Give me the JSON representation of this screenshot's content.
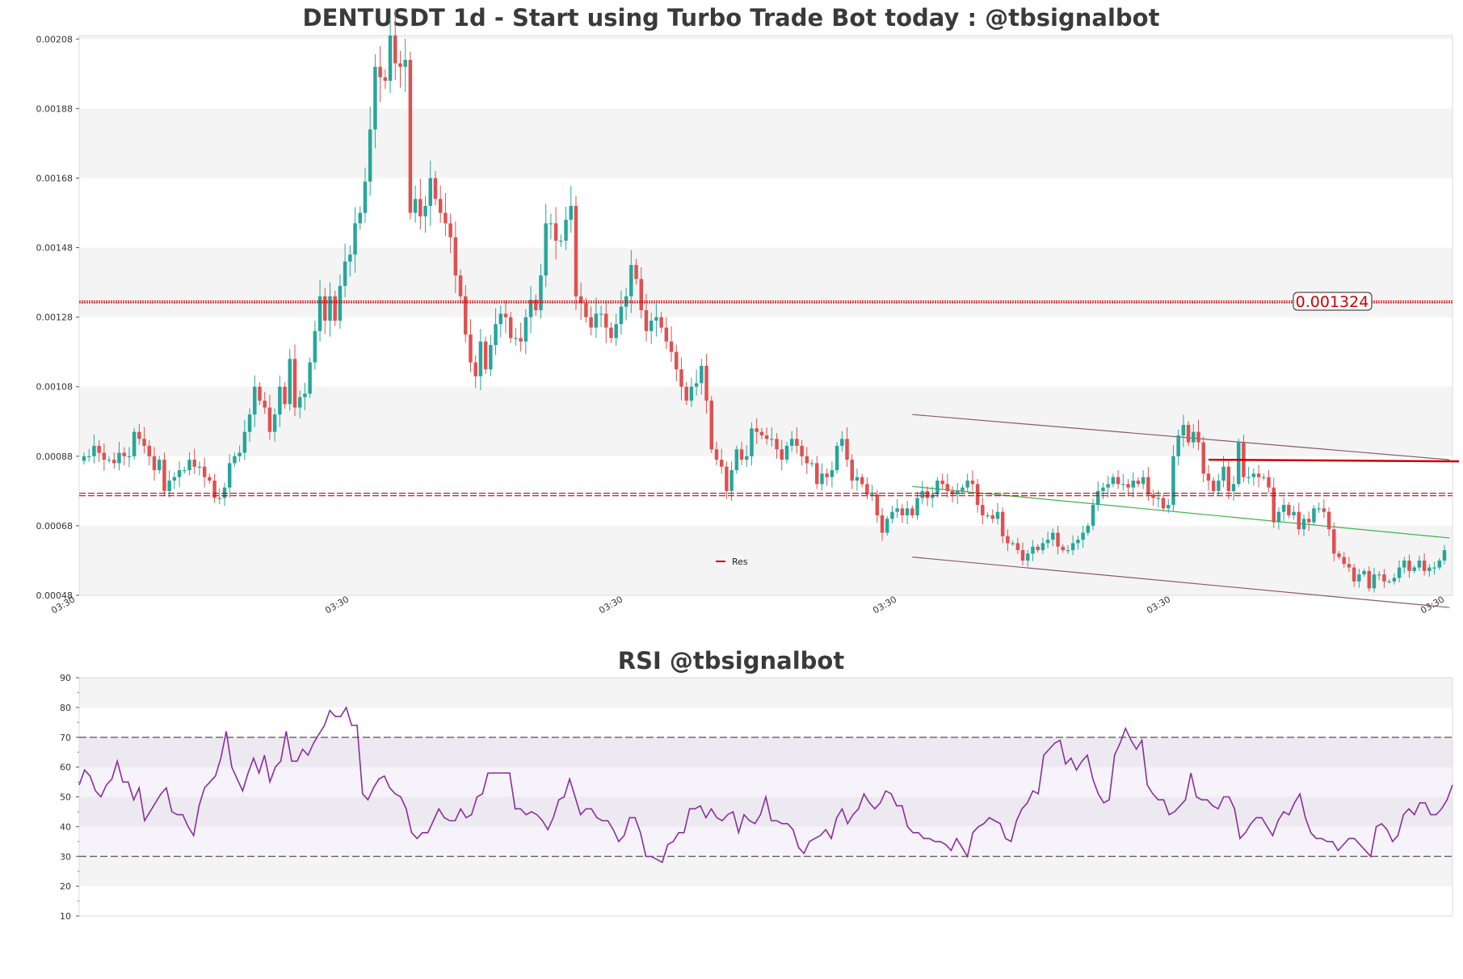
{
  "main_title": "DENTUSDT 1d - Start using Turbo Trade Bot today : @tbsignalbot",
  "rsi_title": "RSI @tbsignalbot",
  "legend_label": "Res",
  "price_tag": "0.001324",
  "colors": {
    "up": "#26a69a",
    "down": "#e05050",
    "res_line": "#cc0000",
    "rsi_line": "#8a2da0",
    "channel": "#8b5a6b",
    "mid_channel": "#3cb44b",
    "band": "#f4f4f4",
    "text": "#333333"
  },
  "chart_data": [
    {
      "type": "candlestick",
      "title": "DENTUSDT 1d - Start using Turbo Trade Bot today : @tbsignalbot",
      "ylim": [
        0.00048,
        0.00209
      ],
      "yticks": [
        "0.00048",
        "0.00068",
        "0.00088",
        "0.00108",
        "0.00128",
        "0.00148",
        "0.00168",
        "0.00188",
        "0.00208"
      ],
      "xtick_labels": [
        "03:30",
        "03:30",
        "03:30",
        "03:30",
        "03:30",
        "03:30"
      ],
      "legend": [
        "Res"
      ],
      "resistance_levels": [
        0.001324,
        0.00077
      ],
      "price_label": "0.001324",
      "short_resistance": {
        "value": 0.00087,
        "from_index": 224
      },
      "channel": {
        "start_index": 165,
        "end_index": 272,
        "upper": [
          0.001,
          0.00087
        ],
        "middle": [
          0.000793,
          0.000645
        ],
        "lower": [
          0.00059,
          0.000445
        ]
      },
      "closes": [
        0.00088,
        0.00088,
        0.00091,
        0.00089,
        0.00087,
        0.00087,
        0.00086,
        0.00089,
        0.00088,
        0.00088,
        0.00095,
        0.00093,
        0.00091,
        0.00088,
        0.00084,
        0.00087,
        0.00078,
        0.00081,
        0.00082,
        0.00084,
        0.00084,
        0.00087,
        0.00085,
        0.00085,
        0.00082,
        0.00081,
        0.00076,
        0.00076,
        0.00079,
        0.00086,
        0.00088,
        0.00089,
        0.00095,
        0.001,
        0.00108,
        0.00104,
        0.00102,
        0.00095,
        0.001,
        0.00108,
        0.00103,
        0.00116,
        0.00102,
        0.00105,
        0.00106,
        0.00115,
        0.00124,
        0.00134,
        0.00127,
        0.00134,
        0.00127,
        0.00137,
        0.00144,
        0.00146,
        0.00155,
        0.00158,
        0.00167,
        0.00182,
        0.002,
        0.00197,
        0.00196,
        0.00209,
        0.00201,
        0.002,
        0.00202,
        0.00158,
        0.00162,
        0.00157,
        0.0016,
        0.00168,
        0.00162,
        0.00158,
        0.00155,
        0.00151,
        0.0014,
        0.00134,
        0.00123,
        0.00115,
        0.00111,
        0.00121,
        0.00113,
        0.0012,
        0.00126,
        0.00129,
        0.00128,
        0.00122,
        0.00122,
        0.00121,
        0.00128,
        0.00133,
        0.0013,
        0.0014,
        0.00155,
        0.00155,
        0.0015,
        0.0015,
        0.00156,
        0.0016,
        0.00134,
        0.00132,
        0.00128,
        0.00125,
        0.00129,
        0.00129,
        0.00125,
        0.00122,
        0.00126,
        0.00131,
        0.00134,
        0.00143,
        0.00139,
        0.0013,
        0.00124,
        0.00127,
        0.00128,
        0.00125,
        0.00121,
        0.00118,
        0.00113,
        0.00108,
        0.00104,
        0.00108,
        0.00109,
        0.00114,
        0.00104,
        0.0009,
        0.00087,
        0.00085,
        0.00078,
        0.00084,
        0.0009,
        0.00087,
        0.00088,
        0.00096,
        0.00095,
        0.00094,
        0.00093,
        0.00093,
        0.0009,
        0.00087,
        0.00091,
        0.00093,
        0.00091,
        0.00088,
        0.00086,
        0.00086,
        0.0008,
        0.00083,
        0.00082,
        0.00084,
        0.00091,
        0.00093,
        0.00087,
        0.00081,
        0.00082,
        0.0008,
        0.00077,
        0.00077,
        0.00071,
        0.00066,
        0.0007,
        0.00072,
        0.00073,
        0.00071,
        0.00073,
        0.00071,
        0.00076,
        0.00078,
        0.00076,
        0.00077,
        0.00081,
        0.0008,
        0.00078,
        0.00077,
        0.00078,
        0.00079,
        0.00081,
        0.0008,
        0.00074,
        0.00071,
        0.00071,
        0.0007,
        0.00072,
        0.00065,
        0.00063,
        0.00063,
        0.00061,
        0.00058,
        0.0006,
        0.00062,
        0.00061,
        0.00063,
        0.00064,
        0.00066,
        0.00062,
        0.00061,
        0.00061,
        0.00063,
        0.00064,
        0.00066,
        0.00068,
        0.00074,
        0.00078,
        0.00079,
        0.0008,
        0.00082,
        0.0008,
        0.0008,
        0.00079,
        0.00081,
        0.0008,
        0.00082,
        0.00077,
        0.00076,
        0.00076,
        0.00073,
        0.00074,
        0.00088,
        0.00094,
        0.00097,
        0.00092,
        0.00095,
        0.00092,
        0.00083,
        0.00081,
        0.00078,
        0.00081,
        0.00085,
        0.00078,
        0.0008,
        0.00092,
        0.00082,
        0.00082,
        0.00083,
        0.00082,
        0.00082,
        0.00079,
        0.00069,
        0.00072,
        0.00074,
        0.00071,
        0.00072,
        0.00067,
        0.0007,
        0.00069,
        0.00073,
        0.00073,
        0.00072,
        0.00067,
        0.0006,
        0.00059,
        0.00057,
        0.00056,
        0.00052,
        0.00054,
        0.00055,
        0.0005,
        0.00054,
        0.00054,
        0.00052,
        0.00052,
        0.00053,
        0.00056,
        0.00058,
        0.00055,
        0.00056,
        0.00058,
        0.00055,
        0.00056,
        0.00056,
        0.00058,
        0.00061
      ]
    },
    {
      "type": "line",
      "title": "RSI @tbsignalbot",
      "ylim": [
        10,
        90
      ],
      "yticks": [
        10,
        20,
        30,
        40,
        50,
        60,
        70,
        80,
        90
      ],
      "hlines": [
        30,
        70
      ],
      "values": [
        54,
        59,
        57,
        52,
        50,
        54,
        56,
        62,
        55,
        55,
        49,
        53,
        42,
        45,
        48,
        51,
        53,
        45,
        44,
        44,
        40,
        37,
        47,
        53,
        55,
        57,
        63,
        72,
        60,
        56,
        52,
        58,
        63,
        58,
        64,
        55,
        60,
        62,
        72,
        62,
        62,
        66,
        64,
        68,
        71,
        74,
        79,
        77,
        77,
        80,
        74,
        74,
        51,
        49,
        53,
        56,
        57,
        53,
        51,
        50,
        46,
        38,
        36,
        38,
        38,
        42,
        46,
        43,
        42,
        42,
        46,
        43,
        44,
        50,
        51,
        58,
        58,
        58,
        58,
        58,
        46,
        46,
        44,
        45,
        44,
        42,
        39,
        43,
        49,
        50,
        56,
        50,
        44,
        46,
        46,
        43,
        42,
        42,
        39,
        35,
        37,
        43,
        43,
        38,
        30,
        30,
        29,
        28,
        34,
        35,
        38,
        38,
        46,
        46,
        47,
        43,
        46,
        43,
        42,
        44,
        45,
        38,
        44,
        42,
        41,
        44,
        50,
        42,
        42,
        41,
        41,
        39,
        33,
        31,
        35,
        36,
        37,
        39,
        36,
        43,
        46,
        41,
        44,
        46,
        51,
        48,
        46,
        48,
        52,
        51,
        47,
        47,
        40,
        38,
        38,
        36,
        36,
        35,
        35,
        34,
        32,
        36,
        33,
        30,
        38,
        40,
        41,
        43,
        42,
        41,
        36,
        35,
        42,
        46,
        48,
        52,
        51,
        64,
        66,
        68,
        69,
        61,
        63,
        59,
        62,
        64,
        56,
        51,
        48,
        49,
        64,
        68,
        73,
        69,
        66,
        69,
        54,
        51,
        49,
        49,
        44,
        45,
        47,
        49,
        58,
        50,
        49,
        49,
        47,
        46,
        50,
        50,
        46,
        36,
        38,
        41,
        43,
        43,
        40,
        37,
        42,
        45,
        44,
        48,
        51,
        43,
        38,
        36,
        36,
        35,
        35,
        32,
        34,
        36,
        36,
        34,
        32,
        30,
        40,
        41,
        39,
        35,
        37,
        44,
        46,
        44,
        48,
        48,
        44,
        44,
        46,
        49,
        54
      ]
    }
  ]
}
